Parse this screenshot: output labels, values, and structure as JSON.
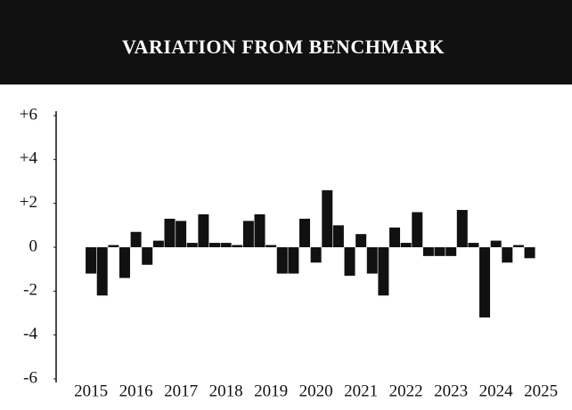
{
  "chart_data": {
    "type": "bar",
    "title": "VARIATION FROM BENCHMARK",
    "x": [
      2015,
      2015.25,
      2015.5,
      2015.75,
      2016,
      2016.25,
      2016.5,
      2016.75,
      2017,
      2017.25,
      2017.5,
      2017.75,
      2018,
      2018.25,
      2018.5,
      2018.75,
      2019,
      2019.25,
      2019.5,
      2019.75,
      2020,
      2020.25,
      2020.5,
      2020.75,
      2021,
      2021.25,
      2021.5,
      2021.75,
      2022,
      2022.25,
      2022.5,
      2022.75,
      2023,
      2023.25,
      2023.5,
      2023.75,
      2024,
      2024.25,
      2024.5,
      2024.75
    ],
    "values": [
      -1.2,
      -2.2,
      0.1,
      -1.4,
      0.7,
      -0.8,
      0.3,
      1.3,
      1.2,
      0.2,
      1.5,
      0.2,
      0.2,
      0.1,
      1.2,
      1.5,
      0.1,
      -1.2,
      -1.2,
      1.3,
      -0.7,
      2.6,
      1.0,
      -1.3,
      0.6,
      -1.2,
      -2.2,
      0.9,
      0.2,
      1.6,
      -0.4,
      -0.4,
      -0.4,
      1.7,
      0.2,
      -3.2,
      0.3,
      -0.7,
      0.1,
      -0.5
    ],
    "color": "#111111",
    "xlim": [
      2014.8,
      2025.65
    ],
    "xticks": [
      2015,
      2016,
      2017,
      2018,
      2019,
      2020,
      2021,
      2022,
      2023,
      2024,
      2025
    ],
    "ylim": [
      -6,
      6
    ],
    "yticks": [
      {
        "value": 6,
        "label": "+6"
      },
      {
        "value": 4,
        "label": "+4"
      },
      {
        "value": 2,
        "label": "+2"
      },
      0,
      -2,
      -4,
      -6
    ]
  }
}
